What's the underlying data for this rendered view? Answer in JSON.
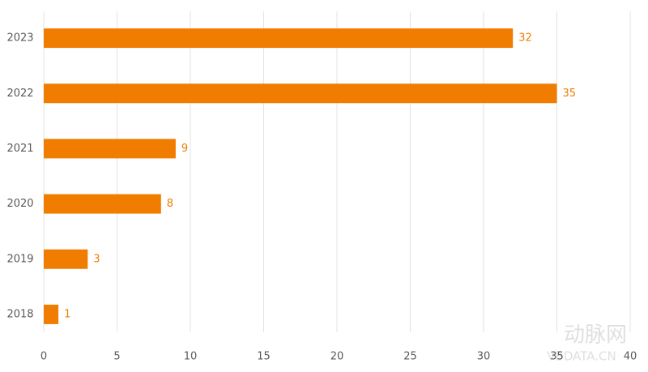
{
  "chart_data": {
    "type": "hbar",
    "categories": [
      "2023",
      "2022",
      "2021",
      "2020",
      "2019",
      "2018"
    ],
    "values": [
      32,
      35,
      9,
      8,
      3,
      1
    ],
    "color": "#f07c00",
    "xlim": [
      0,
      40
    ],
    "xticks": [
      0,
      5,
      10,
      15,
      20,
      25,
      30,
      35,
      40
    ],
    "grid": true,
    "watermark": "动脉网",
    "watermark_sub": "VBDATA.CN"
  }
}
